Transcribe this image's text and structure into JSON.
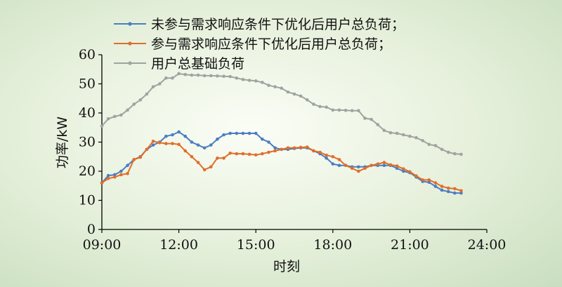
{
  "chart_data": {
    "type": "line",
    "xlabel": "时刻",
    "ylabel": "功率/kW",
    "ylim": [
      0,
      60
    ],
    "yticks": [
      "0",
      "10",
      "20",
      "30",
      "40",
      "50",
      "60"
    ],
    "xticks": [
      "09:00",
      "12:00",
      "15:00",
      "18:00",
      "21:00",
      "24:00"
    ],
    "xlim_hours": [
      9,
      24
    ],
    "grid": false,
    "legend_position": "top",
    "x_hours": [
      9.0,
      9.25,
      9.5,
      9.75,
      10.0,
      10.25,
      10.5,
      10.75,
      11.0,
      11.25,
      11.5,
      11.75,
      12.0,
      12.25,
      12.5,
      12.75,
      13.0,
      13.25,
      13.5,
      13.75,
      14.0,
      14.25,
      14.5,
      14.75,
      15.0,
      15.25,
      15.5,
      15.75,
      16.0,
      16.25,
      16.5,
      16.75,
      17.0,
      17.25,
      17.5,
      17.75,
      18.0,
      18.25,
      18.5,
      18.75,
      19.0,
      19.25,
      19.5,
      19.75,
      20.0,
      20.25,
      20.5,
      20.75,
      21.0,
      21.25,
      21.5,
      21.75,
      22.0,
      22.25,
      22.5,
      22.75,
      23.0
    ],
    "series": [
      {
        "name": "未参与需求响应条件下优化后用户总负荷；",
        "color": "#4a7ec2",
        "values": [
          16,
          18.5,
          18.8,
          20,
          22,
          24,
          25,
          27.5,
          29,
          30,
          32,
          32.5,
          33.5,
          32,
          30,
          29,
          28,
          29,
          31,
          32.5,
          33,
          33,
          33,
          33,
          33,
          31,
          30,
          28,
          27.5,
          27.5,
          27.8,
          28,
          28,
          27,
          26,
          24.5,
          22.5,
          22,
          22,
          21.5,
          21.5,
          21.5,
          22,
          22,
          22,
          22,
          21,
          20,
          19.5,
          18,
          16.5,
          16.2,
          14.8,
          13.5,
          13,
          12.5,
          12.5
        ]
      },
      {
        "name": "参与需求响应条件下优化后用户总负荷；",
        "color": "#e06e2a",
        "values": [
          16,
          17.5,
          18,
          18.8,
          19.2,
          24,
          24.8,
          27.5,
          30.3,
          29.8,
          29.5,
          29.5,
          29.2,
          27,
          25,
          23,
          20.5,
          21.5,
          24.5,
          24.5,
          26.2,
          26,
          26,
          25.8,
          25.6,
          26,
          26.5,
          27,
          27.5,
          28,
          28,
          28.2,
          28.3,
          27,
          26.5,
          25.5,
          25,
          24,
          22,
          21,
          20,
          21,
          22,
          22.5,
          23,
          22.2,
          21.8,
          20.8,
          19.8,
          18.4,
          17,
          17,
          16,
          14.8,
          14.2,
          14,
          13.3
        ]
      },
      {
        "name": "用户总基础负荷",
        "color": "#a0a3a0",
        "values": [
          35.5,
          38,
          38.8,
          39.3,
          41,
          43,
          44.5,
          46.5,
          49,
          50,
          52,
          52,
          53.5,
          53.2,
          53,
          53,
          52.8,
          52.8,
          52.7,
          52.6,
          52.5,
          52,
          51.5,
          51.2,
          51,
          50.5,
          49.5,
          49,
          48.5,
          47.2,
          46.5,
          45.8,
          44.5,
          43,
          42.2,
          42,
          41,
          41,
          40.9,
          40.8,
          40.8,
          38.2,
          37.8,
          36,
          34,
          33.2,
          33,
          32.5,
          32,
          31.5,
          30.5,
          29.2,
          28.8,
          27.5,
          26.5,
          26,
          25.8
        ]
      }
    ]
  }
}
